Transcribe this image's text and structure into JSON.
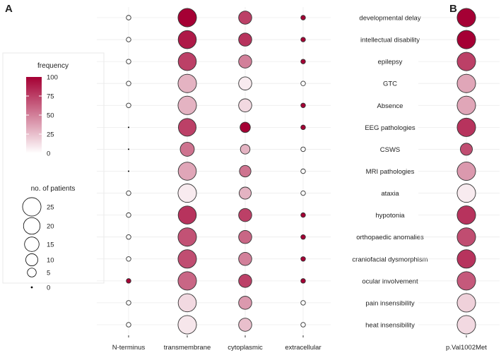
{
  "chart_data": [
    {
      "panel": "A",
      "type": "scatter",
      "subtype": "bubble",
      "x_categories": [
        "N-terminus",
        "transmembrane",
        "cytoplasmic",
        "extracellular"
      ],
      "y_categories": [
        "developmental delay",
        "intellectual disability",
        "epilepsy",
        "GTC",
        "Absence",
        "EEG pathologies",
        "CSWS",
        "MRI pathologies",
        "ataxia",
        "hypotonia",
        "orthopaedic anomalies",
        "craniofacial dysmorphism",
        "ocular involvement",
        "pain insensibility",
        "heat insensibility"
      ],
      "series": [
        {
          "name": "N-terminus",
          "patients": [
            1,
            1,
            1,
            1,
            1,
            0,
            0,
            0,
            1,
            1,
            1,
            1,
            1,
            1,
            1
          ],
          "frequency": [
            0,
            0,
            0,
            0,
            0,
            0,
            0,
            0,
            0,
            0,
            0,
            0,
            100,
            0,
            0
          ]
        },
        {
          "name": "transmembrane",
          "patients": [
            25,
            24,
            24,
            25,
            25,
            23,
            14,
            24,
            25,
            24,
            25,
            25,
            25,
            24,
            25
          ],
          "frequency": [
            100,
            90,
            75,
            30,
            30,
            75,
            55,
            35,
            8,
            80,
            68,
            70,
            60,
            15,
            10
          ]
        },
        {
          "name": "cytoplasmic",
          "patients": [
            12,
            12,
            12,
            12,
            12,
            7,
            6,
            9,
            10,
            12,
            12,
            12,
            12,
            12,
            12
          ],
          "frequency": [
            75,
            80,
            50,
            8,
            15,
            100,
            30,
            55,
            30,
            75,
            60,
            50,
            75,
            40,
            25
          ]
        },
        {
          "name": "extracellular",
          "patients": [
            1,
            1,
            1,
            1,
            1,
            1,
            1,
            1,
            1,
            1,
            1,
            1,
            1,
            1,
            1
          ],
          "frequency": [
            100,
            100,
            100,
            0,
            100,
            100,
            0,
            0,
            0,
            100,
            100,
            100,
            100,
            0,
            0
          ]
        }
      ]
    },
    {
      "panel": "B",
      "type": "scatter",
      "subtype": "bubble",
      "x_categories": [
        "p.Val1002Met"
      ],
      "series": [
        {
          "name": "p.Val1002Met",
          "patients": [
            25,
            25,
            25,
            25,
            25,
            25,
            10,
            25,
            25,
            25,
            25,
            25,
            25,
            25,
            25
          ],
          "frequency": [
            100,
            100,
            75,
            35,
            35,
            80,
            70,
            40,
            8,
            80,
            70,
            80,
            65,
            18,
            15
          ]
        }
      ]
    }
  ],
  "labels": {
    "panel_a": "A",
    "panel_b": "B"
  },
  "legend": {
    "color_title": "frequency",
    "color_ticks": [
      "100",
      "75",
      "50",
      "25",
      "0"
    ],
    "color_range": [
      0,
      100
    ],
    "size_title": "no. of patients",
    "size_ticks": [
      25,
      20,
      15,
      10,
      5,
      0
    ]
  },
  "colors": {
    "low": "#ffffff",
    "high": "#a50034",
    "grid": "#ebebeb",
    "outline": "#333333"
  }
}
